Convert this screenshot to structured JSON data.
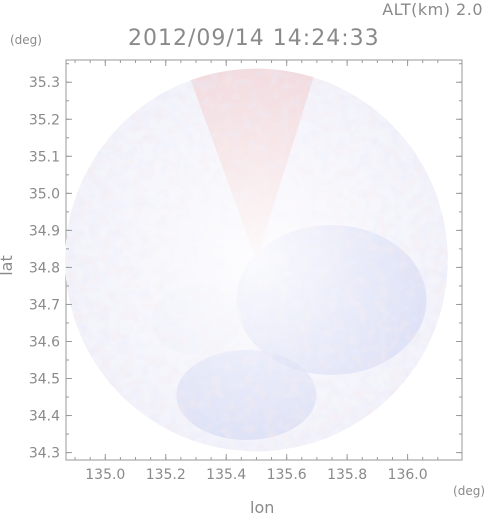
{
  "header": {
    "altitude_label": "ALT(km) 2.0",
    "timestamp": "2012/09/14 14:24:33"
  },
  "axes": {
    "x_label": "lon",
    "y_label": "lat",
    "x_unit": "(deg)",
    "y_unit": "(deg)",
    "x_ticks": [
      "135.0",
      "135.2",
      "135.4",
      "135.6",
      "135.8",
      "136.0"
    ],
    "y_ticks": [
      "35.3",
      "35.2",
      "35.1",
      "35.0",
      "34.9",
      "34.8",
      "34.7",
      "34.6",
      "34.5",
      "34.4",
      "34.3"
    ]
  },
  "map": {
    "type": "radar-ppi",
    "center_lon": 135.5,
    "center_lat": 34.82,
    "x_range": [
      134.87,
      136.18
    ],
    "y_range": [
      34.28,
      35.36
    ],
    "colors": {
      "positive": "#f2c8c8",
      "negative": "#c8cff2",
      "frame": "#9a9a9a"
    }
  }
}
